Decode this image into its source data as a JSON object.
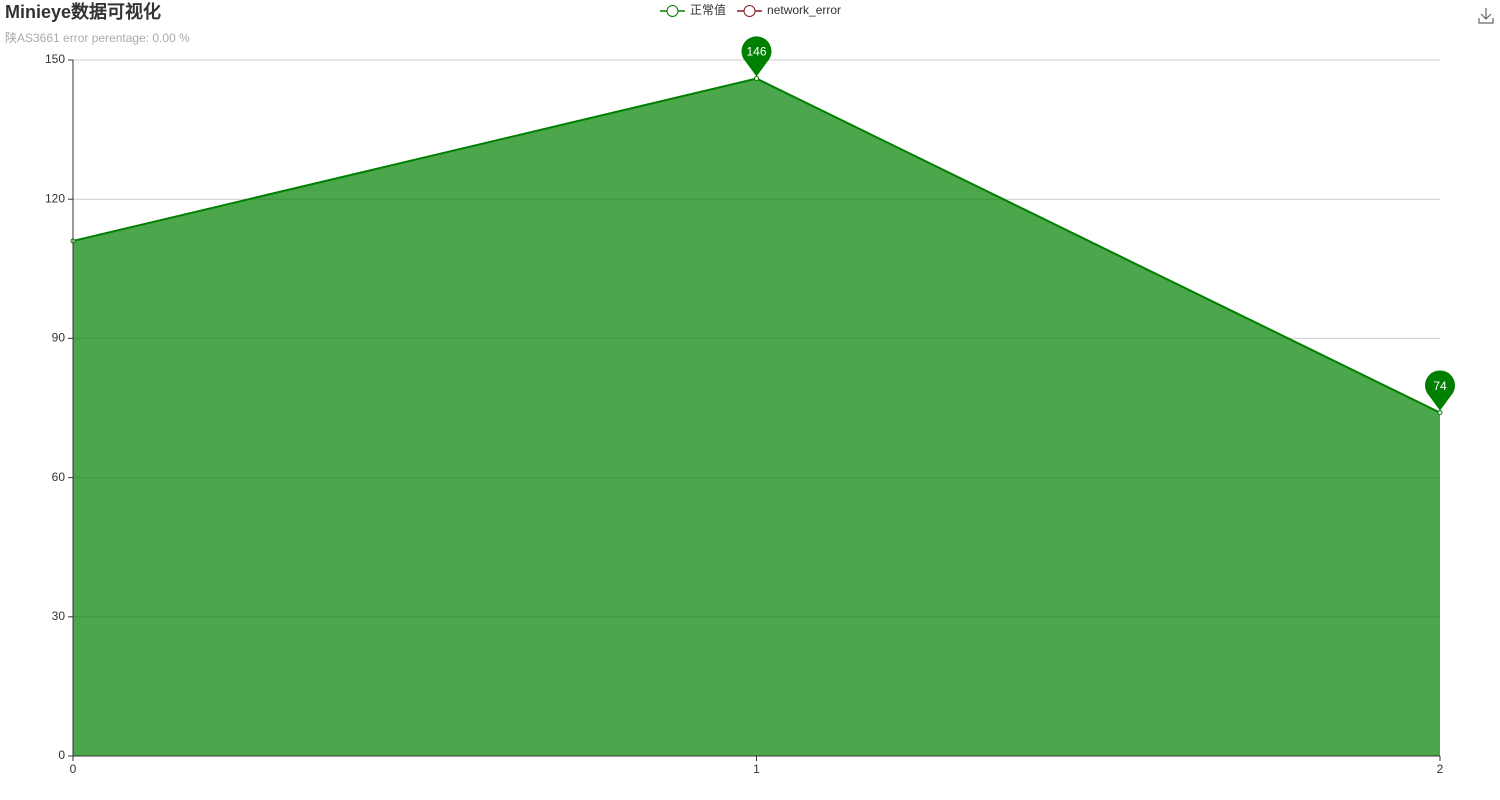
{
  "chart_data": {
    "type": "line",
    "area": true,
    "title": "Minieye数据可视化",
    "subtitle": "陕AS3661 error perentage: 0.00 %",
    "x": [
      0,
      1,
      2
    ],
    "series": [
      {
        "name": "正常值",
        "color": "#008000",
        "values": [
          111,
          146,
          74
        ]
      },
      {
        "name": "network_error",
        "color": "#8b1a1a",
        "values": [
          null,
          null,
          null
        ]
      }
    ],
    "xlim": [
      0,
      2
    ],
    "xticks": [
      0,
      1,
      2
    ],
    "ylim": [
      0,
      150
    ],
    "yticks": [
      0,
      30,
      60,
      90,
      120,
      150
    ],
    "grid": true
  }
}
